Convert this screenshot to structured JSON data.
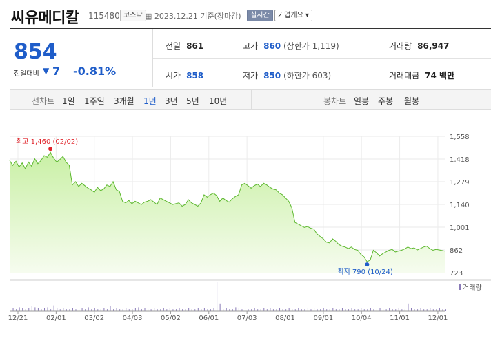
{
  "header": {
    "name": "씨유메디칼",
    "code": "115480",
    "market": "코스닥",
    "date": "2023.12.21 기준(장마감)",
    "live": "실시간",
    "corp": "기업개요 ▾"
  },
  "summary": {
    "price": "854",
    "change_label": "전일대비",
    "change_arrow": "▼",
    "change": "7",
    "change_pct": "-0.81%"
  },
  "stats": {
    "prev": {
      "label": "전일",
      "value": "861"
    },
    "high": {
      "label": "고가",
      "value": "860",
      "sub": "(상한가 1,119)"
    },
    "volume": {
      "label": "거래량",
      "value": "86,947"
    },
    "open": {
      "label": "시가",
      "value": "858"
    },
    "low": {
      "label": "저가",
      "value": "850",
      "sub": "(하한가 603)"
    },
    "amount": {
      "label": "거래대금",
      "value": "74 백만"
    }
  },
  "tabs": {
    "line_label": "선차트",
    "line": [
      "1일",
      "1주일",
      "3개월",
      "1년",
      "3년",
      "5년",
      "10년"
    ],
    "active": "1년",
    "candle_label": "봉차트",
    "candle": [
      "일봉",
      "주봉",
      "월봉"
    ]
  },
  "chart_data": {
    "type": "area",
    "y_ticks": [
      "1,558",
      "1,418",
      "1,279",
      "1,140",
      "1,001",
      "862",
      "723"
    ],
    "ylim": [
      723,
      1558
    ],
    "x_ticks": [
      "12/21",
      "02/01",
      "03/02",
      "04/03",
      "05/02",
      "06/01",
      "07/03",
      "08/01",
      "09/01",
      "10/04",
      "11/01",
      "12/01"
    ],
    "high_label": "최고 1,460 (02/02)",
    "low_label": "최저 790 (10/24)",
    "volume_label": "거래량",
    "fill_color": "#c9f0a5",
    "line_color": "#5db82f",
    "high_color": "#e0242b",
    "low_color": "#1f5dc9",
    "values": [
      1410,
      1380,
      1405,
      1370,
      1395,
      1360,
      1400,
      1375,
      1420,
      1390,
      1410,
      1440,
      1430,
      1460,
      1425,
      1400,
      1415,
      1435,
      1400,
      1380,
      1260,
      1280,
      1250,
      1270,
      1255,
      1240,
      1230,
      1215,
      1245,
      1225,
      1235,
      1260,
      1250,
      1280,
      1230,
      1220,
      1160,
      1150,
      1165,
      1145,
      1160,
      1150,
      1140,
      1155,
      1160,
      1170,
      1155,
      1140,
      1180,
      1170,
      1160,
      1150,
      1140,
      1145,
      1150,
      1130,
      1140,
      1170,
      1150,
      1140,
      1130,
      1150,
      1200,
      1185,
      1200,
      1210,
      1195,
      1160,
      1180,
      1165,
      1155,
      1175,
      1190,
      1200,
      1260,
      1270,
      1255,
      1240,
      1255,
      1265,
      1250,
      1270,
      1260,
      1245,
      1235,
      1230,
      1210,
      1200,
      1180,
      1160,
      1120,
      1030,
      1020,
      1010,
      1000,
      1005,
      995,
      990,
      960,
      945,
      930,
      910,
      905,
      930,
      915,
      895,
      885,
      880,
      870,
      880,
      865,
      860,
      835,
      820,
      790,
      800,
      860,
      845,
      825,
      840,
      850,
      860,
      865,
      850,
      855,
      860,
      868,
      880,
      870,
      875,
      862,
      870,
      880,
      885,
      870,
      860,
      865,
      862,
      858,
      854
    ],
    "volume": [
      2,
      3,
      2,
      4,
      3,
      2,
      3,
      5,
      4,
      3,
      2,
      3,
      4,
      2,
      6,
      3,
      2,
      3,
      2,
      2,
      3,
      2,
      2,
      3,
      2,
      4,
      2,
      3,
      2,
      2,
      3,
      2,
      5,
      2,
      3,
      2,
      2,
      3,
      2,
      2,
      3,
      4,
      2,
      3,
      2,
      2,
      3,
      2,
      2,
      3,
      2,
      3,
      2,
      2,
      3,
      2,
      2,
      3,
      2,
      2,
      3,
      2,
      3,
      2,
      2,
      3,
      30,
      8,
      2,
      3,
      2,
      2,
      4,
      3,
      2,
      3,
      2,
      2,
      3,
      2,
      2,
      3,
      2,
      3,
      2,
      2,
      3,
      2,
      2,
      3,
      2,
      2,
      3,
      2,
      2,
      3,
      2,
      3,
      2,
      2,
      3,
      2,
      2,
      3,
      2,
      2,
      3,
      2,
      2,
      3,
      2,
      2,
      3,
      2,
      2,
      3,
      2,
      2,
      3,
      2,
      2,
      3,
      2,
      2,
      3,
      2,
      2,
      8,
      3,
      2,
      2,
      3,
      2,
      2,
      3,
      2,
      2,
      3,
      2,
      2
    ]
  }
}
